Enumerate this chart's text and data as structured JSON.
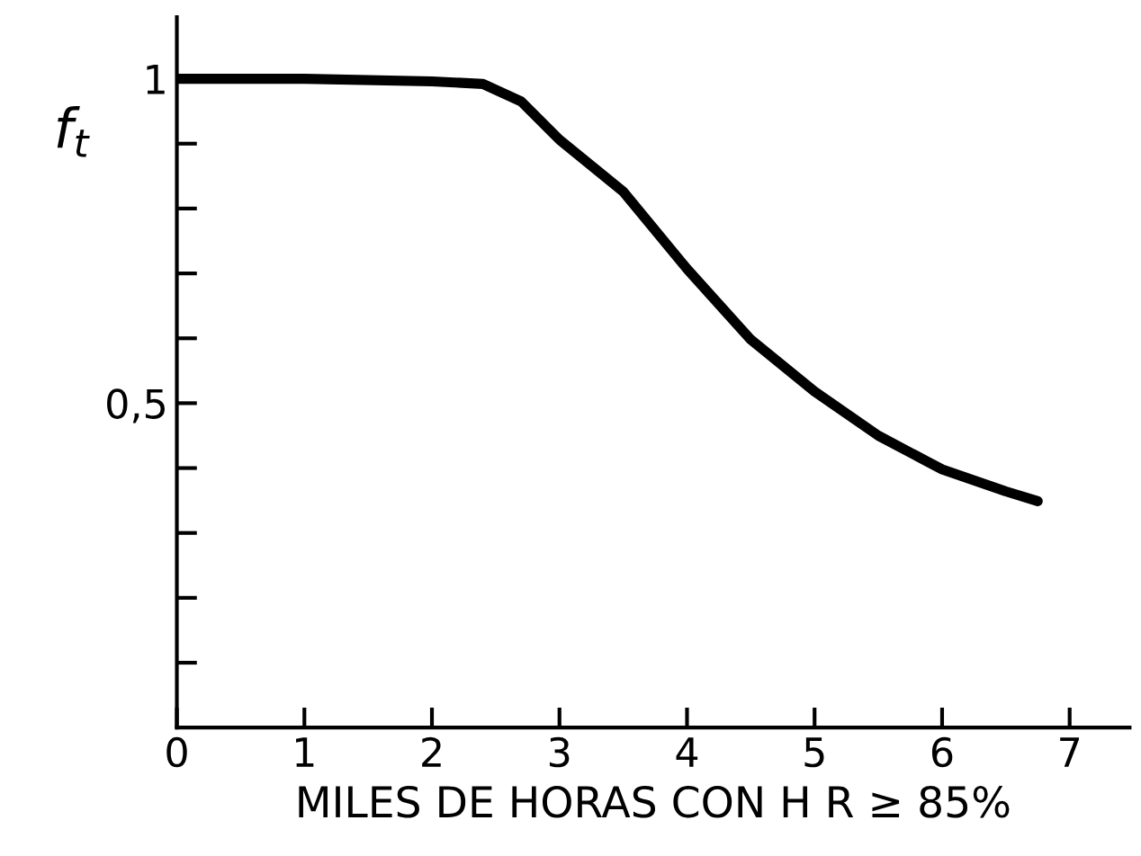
{
  "chart_data": {
    "type": "line",
    "xlabel": "MILES DE HORAS CON H R ≥ 85%",
    "ylabel": "f$_{t}$",
    "x": [
      0,
      1,
      2,
      2.4,
      2.7,
      3,
      3.5,
      4,
      4.5,
      5,
      5.5,
      6,
      6.5,
      6.75
    ],
    "series": [
      {
        "color": "#000000",
        "values": [
          1,
          1,
          0.996,
          0.992,
          0.965,
          0.906,
          0.826,
          0.707,
          0.598,
          0.518,
          0.45,
          0.398,
          0.364,
          0.349
        ]
      }
    ],
    "xlim": [
      0,
      7.47
    ],
    "ylim": [
      0,
      1.095
    ],
    "xticks": [
      0,
      1,
      2,
      3,
      4,
      5,
      6,
      7
    ],
    "yticks": [
      {
        "value": 0.1,
        "label": null
      },
      {
        "value": 0.2,
        "label": null
      },
      {
        "value": 0.3,
        "label": null
      },
      {
        "value": 0.4,
        "label": null
      },
      {
        "value": 0.5,
        "label": "0,5"
      },
      {
        "value": 0.6,
        "label": null
      },
      {
        "value": 0.7,
        "label": null
      },
      {
        "value": 0.8,
        "label": null
      },
      {
        "value": 0.9,
        "label": null
      },
      {
        "value": 1,
        "label": "1"
      }
    ],
    "grid": false,
    "legend": false,
    "marker": "none",
    "line_style": "solid"
  }
}
